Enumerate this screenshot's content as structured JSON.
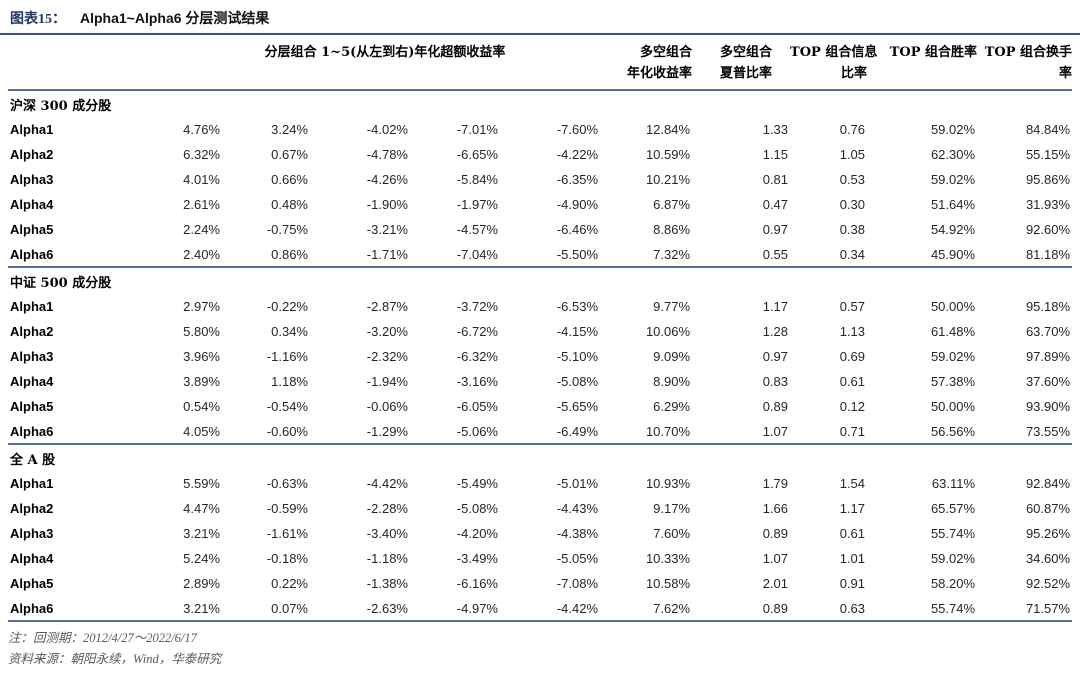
{
  "figure": {
    "label": "图表15：",
    "title": "Alpha1~Alpha6 分层测试结果"
  },
  "table": {
    "merged_header": "分层组合 1~5(从左到右)年化超额收益率",
    "right_headers": [
      {
        "line1": "多空组合",
        "line2": "年化收益率"
      },
      {
        "line1": "多空组合",
        "line2": "夏普比率"
      },
      {
        "line1": "TOP 组合信息",
        "line2": "比率"
      },
      {
        "line1": "TOP 组合胜率",
        "line2": ""
      },
      {
        "line1": "TOP 组合换手",
        "line2": "率"
      }
    ],
    "sections": [
      {
        "name": "沪深 300 成分股",
        "rows": [
          {
            "label": "Alpha1",
            "values": [
              "4.76%",
              "3.24%",
              "-4.02%",
              "-7.01%",
              "-7.60%",
              "12.84%",
              "1.33",
              "0.76",
              "59.02%",
              "84.84%"
            ]
          },
          {
            "label": "Alpha2",
            "values": [
              "6.32%",
              "0.67%",
              "-4.78%",
              "-6.65%",
              "-4.22%",
              "10.59%",
              "1.15",
              "1.05",
              "62.30%",
              "55.15%"
            ]
          },
          {
            "label": "Alpha3",
            "values": [
              "4.01%",
              "0.66%",
              "-4.26%",
              "-5.84%",
              "-6.35%",
              "10.21%",
              "0.81",
              "0.53",
              "59.02%",
              "95.86%"
            ]
          },
          {
            "label": "Alpha4",
            "values": [
              "2.61%",
              "0.48%",
              "-1.90%",
              "-1.97%",
              "-4.90%",
              "6.87%",
              "0.47",
              "0.30",
              "51.64%",
              "31.93%"
            ]
          },
          {
            "label": "Alpha5",
            "values": [
              "2.24%",
              "-0.75%",
              "-3.21%",
              "-4.57%",
              "-6.46%",
              "8.86%",
              "0.97",
              "0.38",
              "54.92%",
              "92.60%"
            ]
          },
          {
            "label": "Alpha6",
            "values": [
              "2.40%",
              "0.86%",
              "-1.71%",
              "-7.04%",
              "-5.50%",
              "7.32%",
              "0.55",
              "0.34",
              "45.90%",
              "81.18%"
            ]
          }
        ]
      },
      {
        "name": "中证 500 成分股",
        "rows": [
          {
            "label": "Alpha1",
            "values": [
              "2.97%",
              "-0.22%",
              "-2.87%",
              "-3.72%",
              "-6.53%",
              "9.77%",
              "1.17",
              "0.57",
              "50.00%",
              "95.18%"
            ]
          },
          {
            "label": "Alpha2",
            "values": [
              "5.80%",
              "0.34%",
              "-3.20%",
              "-6.72%",
              "-4.15%",
              "10.06%",
              "1.28",
              "1.13",
              "61.48%",
              "63.70%"
            ]
          },
          {
            "label": "Alpha3",
            "values": [
              "3.96%",
              "-1.16%",
              "-2.32%",
              "-6.32%",
              "-5.10%",
              "9.09%",
              "0.97",
              "0.69",
              "59.02%",
              "97.89%"
            ]
          },
          {
            "label": "Alpha4",
            "values": [
              "3.89%",
              "1.18%",
              "-1.94%",
              "-3.16%",
              "-5.08%",
              "8.90%",
              "0.83",
              "0.61",
              "57.38%",
              "37.60%"
            ]
          },
          {
            "label": "Alpha5",
            "values": [
              "0.54%",
              "-0.54%",
              "-0.06%",
              "-6.05%",
              "-5.65%",
              "6.29%",
              "0.89",
              "0.12",
              "50.00%",
              "93.90%"
            ]
          },
          {
            "label": "Alpha6",
            "values": [
              "4.05%",
              "-0.60%",
              "-1.29%",
              "-5.06%",
              "-6.49%",
              "10.70%",
              "1.07",
              "0.71",
              "56.56%",
              "73.55%"
            ]
          }
        ]
      },
      {
        "name": "全 A 股",
        "rows": [
          {
            "label": "Alpha1",
            "values": [
              "5.59%",
              "-0.63%",
              "-4.42%",
              "-5.49%",
              "-5.01%",
              "10.93%",
              "1.79",
              "1.54",
              "63.11%",
              "92.84%"
            ]
          },
          {
            "label": "Alpha2",
            "values": [
              "4.47%",
              "-0.59%",
              "-2.28%",
              "-5.08%",
              "-4.43%",
              "9.17%",
              "1.66",
              "1.17",
              "65.57%",
              "60.87%"
            ]
          },
          {
            "label": "Alpha3",
            "values": [
              "3.21%",
              "-1.61%",
              "-3.40%",
              "-4.20%",
              "-4.38%",
              "7.60%",
              "0.89",
              "0.61",
              "55.74%",
              "95.26%"
            ]
          },
          {
            "label": "Alpha4",
            "values": [
              "5.24%",
              "-0.18%",
              "-1.18%",
              "-3.49%",
              "-5.05%",
              "10.33%",
              "1.07",
              "1.01",
              "59.02%",
              "34.60%"
            ]
          },
          {
            "label": "Alpha5",
            "values": [
              "2.89%",
              "0.22%",
              "-1.38%",
              "-6.16%",
              "-7.08%",
              "10.58%",
              "2.01",
              "0.91",
              "58.20%",
              "92.52%"
            ]
          },
          {
            "label": "Alpha6",
            "values": [
              "3.21%",
              "0.07%",
              "-2.63%",
              "-4.97%",
              "-4.42%",
              "7.62%",
              "0.89",
              "0.63",
              "55.74%",
              "71.57%"
            ]
          }
        ]
      }
    ]
  },
  "notes": {
    "backtest": "注：回测期：2012/4/27～2022/6/17",
    "source": "资料来源：朝阳永续，Wind，华泰研究"
  },
  "colors": {
    "title_navy": "#1f3864",
    "title_rule_blue": "#2f5597",
    "table_rule_blue": "#54719e",
    "note_gray": "#595959"
  }
}
